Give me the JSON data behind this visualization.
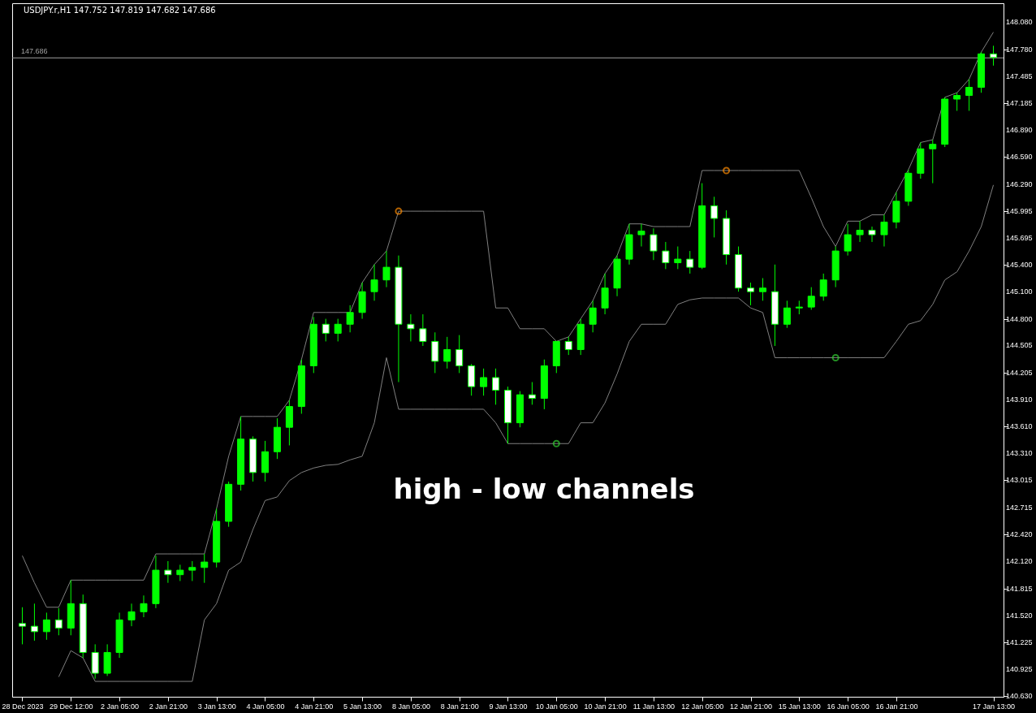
{
  "chart_data": {
    "type": "candlestick",
    "title": "USDJPY.r,H1  147.752 147.819 147.682 147.686",
    "annotations": [
      "high - low channels"
    ],
    "categories": [
      "28 Dec 2023",
      null,
      null,
      null,
      "29 Dec 12:00",
      null,
      null,
      null,
      "2 Jan 05:00",
      null,
      null,
      null,
      "2 Jan 21:00",
      null,
      null,
      null,
      "3 Jan 13:00",
      null,
      null,
      null,
      "4 Jan 05:00",
      null,
      null,
      null,
      "4 Jan 21:00",
      null,
      null,
      null,
      "5 Jan 13:00",
      null,
      null,
      null,
      "8 Jan 05:00",
      null,
      null,
      null,
      "8 Jan 21:00",
      null,
      null,
      null,
      "9 Jan 13:00",
      null,
      null,
      null,
      "10 Jan 05:00",
      null,
      null,
      null,
      "10 Jan 21:00",
      null,
      null,
      null,
      "11 Jan 13:00",
      null,
      null,
      null,
      "12 Jan 05:00",
      null,
      null,
      null,
      "12 Jan 21:00",
      null,
      null,
      null,
      "15 Jan 13:00",
      null,
      null,
      null,
      "16 Jan 05:00",
      null,
      null,
      null,
      "16 Jan 21:00",
      null,
      null,
      null,
      null,
      null,
      null,
      null,
      "17 Jan 13:00"
    ],
    "color": "#00ff00",
    "ohlc": [
      [
        141.43,
        141.61,
        141.2,
        141.4
      ],
      [
        141.4,
        141.65,
        141.24,
        141.34
      ],
      [
        141.34,
        141.55,
        141.25,
        141.47
      ],
      [
        141.47,
        141.6,
        141.3,
        141.38
      ],
      [
        141.38,
        141.91,
        141.3,
        141.65
      ],
      [
        141.65,
        141.75,
        141.05,
        141.11
      ],
      [
        141.11,
        141.2,
        140.82,
        140.88
      ],
      [
        140.88,
        141.2,
        140.85,
        141.11
      ],
      [
        141.11,
        141.55,
        141.05,
        141.47
      ],
      [
        141.47,
        141.65,
        141.4,
        141.56
      ],
      [
        141.56,
        141.74,
        141.5,
        141.65
      ],
      [
        141.65,
        142.18,
        141.6,
        142.02
      ],
      [
        142.02,
        142.12,
        141.88,
        141.97
      ],
      [
        141.97,
        142.08,
        141.9,
        142.02
      ],
      [
        142.02,
        142.12,
        141.9,
        142.05
      ],
      [
        142.05,
        142.2,
        141.88,
        142.11
      ],
      [
        142.11,
        142.7,
        142.05,
        142.56
      ],
      [
        142.56,
        143.0,
        142.5,
        142.97
      ],
      [
        142.97,
        143.72,
        142.9,
        143.47
      ],
      [
        143.47,
        143.5,
        143.0,
        143.1
      ],
      [
        143.1,
        143.45,
        143.0,
        143.33
      ],
      [
        143.33,
        143.7,
        143.25,
        143.6
      ],
      [
        143.6,
        143.9,
        143.4,
        143.83
      ],
      [
        143.83,
        144.35,
        143.75,
        144.28
      ],
      [
        144.28,
        144.82,
        144.2,
        144.74
      ],
      [
        144.74,
        144.8,
        144.55,
        144.64
      ],
      [
        144.64,
        144.8,
        144.55,
        144.74
      ],
      [
        144.74,
        144.95,
        144.65,
        144.87
      ],
      [
        144.87,
        145.2,
        144.8,
        145.1
      ],
      [
        145.1,
        145.4,
        145.0,
        145.23
      ],
      [
        145.23,
        145.55,
        145.15,
        145.37
      ],
      [
        145.37,
        145.5,
        144.1,
        144.74
      ],
      [
        144.74,
        144.85,
        144.55,
        144.69
      ],
      [
        144.69,
        144.85,
        144.5,
        144.55
      ],
      [
        144.55,
        144.65,
        144.2,
        144.33
      ],
      [
        144.33,
        144.6,
        144.25,
        144.46
      ],
      [
        144.46,
        144.62,
        144.2,
        144.28
      ],
      [
        144.28,
        144.3,
        143.95,
        144.05
      ],
      [
        144.05,
        144.25,
        143.95,
        144.15
      ],
      [
        144.15,
        144.25,
        143.85,
        144.01
      ],
      [
        144.01,
        144.05,
        143.42,
        143.65
      ],
      [
        143.65,
        144.0,
        143.6,
        143.96
      ],
      [
        143.96,
        144.1,
        143.85,
        143.92
      ],
      [
        143.92,
        144.35,
        143.8,
        144.28
      ],
      [
        144.28,
        144.55,
        144.2,
        144.55
      ],
      [
        144.55,
        144.6,
        144.4,
        144.46
      ],
      [
        144.46,
        144.8,
        144.4,
        144.74
      ],
      [
        144.74,
        145.0,
        144.65,
        144.92
      ],
      [
        144.92,
        145.3,
        144.85,
        145.14
      ],
      [
        145.14,
        145.5,
        145.05,
        145.46
      ],
      [
        145.46,
        145.85,
        145.4,
        145.73
      ],
      [
        145.73,
        145.85,
        145.6,
        145.77
      ],
      [
        145.73,
        145.8,
        145.45,
        145.55
      ],
      [
        145.55,
        145.65,
        145.35,
        145.42
      ],
      [
        145.42,
        145.6,
        145.35,
        145.46
      ],
      [
        145.46,
        145.55,
        145.3,
        145.37
      ],
      [
        145.37,
        146.3,
        145.35,
        146.05
      ],
      [
        146.05,
        146.15,
        145.7,
        145.91
      ],
      [
        145.91,
        146.0,
        145.4,
        145.51
      ],
      [
        145.51,
        145.6,
        145.1,
        145.14
      ],
      [
        145.14,
        145.2,
        144.95,
        145.1
      ],
      [
        145.1,
        145.25,
        145.0,
        145.14
      ],
      [
        145.1,
        145.4,
        144.5,
        144.74
      ],
      [
        144.74,
        145.0,
        144.7,
        144.92
      ],
      [
        144.92,
        145.0,
        144.85,
        144.93
      ],
      [
        144.93,
        145.15,
        144.9,
        145.05
      ],
      [
        145.05,
        145.3,
        145.0,
        145.23
      ],
      [
        145.23,
        145.6,
        145.15,
        145.55
      ],
      [
        145.55,
        145.85,
        145.5,
        145.73
      ],
      [
        145.73,
        145.88,
        145.65,
        145.78
      ],
      [
        145.78,
        145.82,
        145.65,
        145.73
      ],
      [
        145.73,
        145.95,
        145.6,
        145.87
      ],
      [
        145.87,
        146.2,
        145.8,
        146.1
      ],
      [
        146.1,
        146.45,
        146.05,
        146.41
      ],
      [
        146.41,
        146.75,
        146.35,
        146.68
      ],
      [
        146.68,
        146.78,
        146.3,
        146.73
      ],
      [
        146.73,
        147.25,
        146.7,
        147.23
      ],
      [
        147.23,
        147.3,
        147.1,
        147.27
      ],
      [
        147.27,
        147.45,
        147.1,
        147.36
      ],
      [
        147.36,
        147.75,
        147.3,
        147.73
      ],
      [
        147.73,
        147.82,
        147.6,
        147.69
      ]
    ],
    "series": [
      {
        "type": "line",
        "color": "#808080",
        "values": [
          142.18,
          141.88,
          141.61,
          141.61,
          141.91,
          141.91,
          141.91,
          141.91,
          141.91,
          141.91,
          141.91,
          142.2,
          142.2,
          142.2,
          142.2,
          142.2,
          142.7,
          143.28,
          143.72,
          143.72,
          143.72,
          143.72,
          143.9,
          144.35,
          144.87,
          144.87,
          144.87,
          144.87,
          145.2,
          145.4,
          145.55,
          145.99,
          145.99,
          145.99,
          145.99,
          145.99,
          145.99,
          145.99,
          145.99,
          144.92,
          144.92,
          144.69,
          144.69,
          144.69,
          144.55,
          144.6,
          144.8,
          145.0,
          145.3,
          145.5,
          145.85,
          145.85,
          145.82,
          145.82,
          145.82,
          145.82,
          146.44,
          146.44,
          146.44,
          146.44,
          146.44,
          146.44,
          146.44,
          146.44,
          146.44,
          146.14,
          145.82,
          145.6,
          145.88,
          145.88,
          145.95,
          145.95,
          146.2,
          146.45,
          146.75,
          146.78,
          147.25,
          147.3,
          147.45,
          147.75,
          147.97
        ]
      },
      {
        "type": "line",
        "color": "#808080",
        "values": [
          null,
          null,
          null,
          140.84,
          141.13,
          141.05,
          140.79,
          140.79,
          140.79,
          140.79,
          140.79,
          140.79,
          140.79,
          140.79,
          140.79,
          141.47,
          141.65,
          142.02,
          142.11,
          142.47,
          142.79,
          142.83,
          143.01,
          143.1,
          143.15,
          143.18,
          143.19,
          143.24,
          143.28,
          143.65,
          144.37,
          143.8,
          143.8,
          143.8,
          143.8,
          143.8,
          143.8,
          143.8,
          143.8,
          143.65,
          143.42,
          143.42,
          143.42,
          143.42,
          143.42,
          143.42,
          143.65,
          143.65,
          143.87,
          144.19,
          144.55,
          144.74,
          144.74,
          144.74,
          144.96,
          145.01,
          145.03,
          145.03,
          145.03,
          145.03,
          144.92,
          144.87,
          144.37,
          144.37,
          144.37,
          144.37,
          144.37,
          144.37,
          144.37,
          144.37,
          144.37,
          144.37,
          144.55,
          144.74,
          144.78,
          144.96,
          145.23,
          145.32,
          145.55,
          145.82,
          146.28
        ]
      },
      {
        "type": "scatter",
        "color": "#ff8c00",
        "values": [
          null,
          null,
          null,
          null,
          null,
          null,
          null,
          null,
          null,
          null,
          null,
          null,
          null,
          null,
          null,
          null,
          null,
          null,
          null,
          null,
          null,
          null,
          null,
          null,
          null,
          null,
          null,
          null,
          null,
          null,
          null,
          145.99,
          null,
          null,
          null,
          null,
          null,
          null,
          null,
          null,
          null,
          null,
          null,
          null,
          null,
          null,
          null,
          null,
          null,
          null,
          null,
          null,
          null,
          null,
          null,
          null,
          null,
          null,
          146.44,
          null,
          null,
          null,
          null,
          null,
          null,
          null,
          null,
          null,
          null,
          null,
          null,
          null,
          null,
          null,
          null,
          null,
          null,
          null,
          null,
          null,
          null
        ]
      },
      {
        "type": "scatter",
        "color": "#32cd32",
        "values": [
          null,
          null,
          null,
          null,
          null,
          null,
          null,
          null,
          null,
          null,
          null,
          null,
          null,
          null,
          null,
          null,
          null,
          null,
          null,
          null,
          null,
          null,
          null,
          null,
          null,
          null,
          null,
          null,
          null,
          null,
          null,
          null,
          null,
          null,
          null,
          null,
          null,
          null,
          null,
          null,
          null,
          null,
          null,
          null,
          143.42,
          null,
          null,
          null,
          null,
          null,
          null,
          null,
          null,
          null,
          null,
          null,
          null,
          null,
          null,
          null,
          null,
          null,
          null,
          null,
          null,
          null,
          null,
          144.37,
          null,
          null,
          null,
          null,
          null,
          null,
          null,
          null,
          null,
          null,
          null,
          null,
          null
        ]
      }
    ],
    "ylim": [
      140.62,
      148.29
    ],
    "yticks": [
      {
        "value": 140.63,
        "label": "140.630"
      },
      {
        "value": 140.925,
        "label": "140.925"
      },
      {
        "value": 141.225,
        "label": "141.225"
      },
      {
        "value": 141.52,
        "label": "141.520"
      },
      {
        "value": 141.815,
        "label": "141.815"
      },
      {
        "value": 142.12,
        "label": "142.120"
      },
      {
        "value": 142.42,
        "label": "142.420"
      },
      {
        "value": 142.715,
        "label": "142.715"
      },
      {
        "value": 143.015,
        "label": "143.015"
      },
      {
        "value": 143.31,
        "label": "143.310"
      },
      {
        "value": 143.61,
        "label": "143.610"
      },
      {
        "value": 143.91,
        "label": "143.910"
      },
      {
        "value": 144.205,
        "label": "144.205"
      },
      {
        "value": 144.505,
        "label": "144.505"
      },
      {
        "value": 144.8,
        "label": "144.800"
      },
      {
        "value": 145.1,
        "label": "145.100"
      },
      {
        "value": 145.4,
        "label": "145.400"
      },
      {
        "value": 145.695,
        "label": "145.695"
      },
      {
        "value": 145.995,
        "label": "145.995"
      },
      {
        "value": 146.29,
        "label": "146.290"
      },
      {
        "value": 146.59,
        "label": "146.590"
      },
      {
        "value": 146.89,
        "label": "146.890"
      },
      {
        "value": 147.185,
        "label": "147.185"
      },
      {
        "value": 147.485,
        "label": "147.485"
      },
      {
        "value": 147.78,
        "label": "147.780"
      },
      {
        "value": 148.08,
        "label": "148.080"
      }
    ],
    "ref_lines": [
      {
        "axis": "y",
        "value": 147.686,
        "label": "147.686",
        "color": "#a0a0a0"
      }
    ]
  }
}
